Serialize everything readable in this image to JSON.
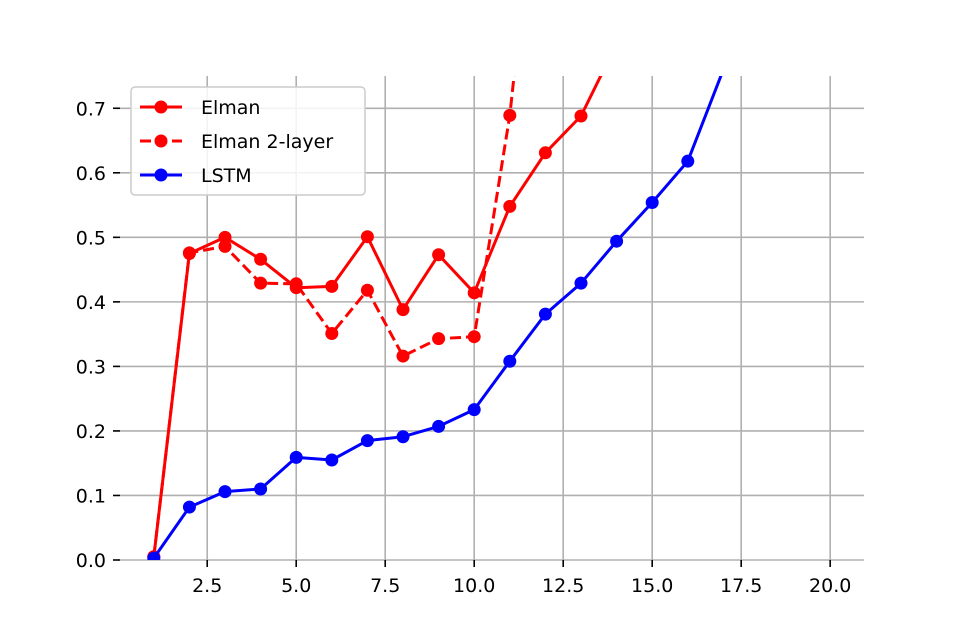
{
  "chart_data": {
    "type": "line",
    "title": "",
    "xlabel": "",
    "ylabel": "",
    "xlim": [
      0.05,
      20.95
    ],
    "ylim": [
      0,
      0.75
    ],
    "grid": true,
    "legend_position": "upper-left",
    "x_ticks": [
      2.5,
      5.0,
      7.5,
      10.0,
      12.5,
      15.0,
      17.5,
      20.0
    ],
    "x_tick_labels": [
      "2.5",
      "5.0",
      "7.5",
      "10.0",
      "12.5",
      "15.0",
      "17.5",
      "20.0"
    ],
    "y_ticks": [
      0.0,
      0.1,
      0.2,
      0.3,
      0.4,
      0.5,
      0.6,
      0.7
    ],
    "y_tick_labels": [
      "0.0",
      "0.1",
      "0.2",
      "0.3",
      "0.4",
      "0.5",
      "0.6",
      "0.7"
    ],
    "series": [
      {
        "name": "Elman",
        "color": "#ff0000",
        "dash": "solid",
        "marker": "circle",
        "x": [
          1,
          2,
          3,
          4,
          5,
          6,
          7,
          8,
          9,
          10,
          11,
          12,
          13,
          14
        ],
        "y": [
          0.005,
          0.475,
          0.5,
          0.466,
          0.422,
          0.424,
          0.501,
          0.388,
          0.473,
          0.414,
          0.548,
          0.631,
          0.688,
          0.8
        ]
      },
      {
        "name": "Elman 2-layer",
        "color": "#ff0000",
        "dash": "dashed",
        "marker": "circle",
        "x": [
          1,
          2,
          3,
          4,
          5,
          6,
          7,
          8,
          9,
          10,
          11,
          12
        ],
        "y": [
          0.005,
          0.476,
          0.486,
          0.429,
          0.428,
          0.351,
          0.418,
          0.316,
          0.343,
          0.346,
          0.689,
          1.2
        ]
      },
      {
        "name": "LSTM",
        "color": "#0000ff",
        "dash": "solid",
        "marker": "circle",
        "x": [
          1,
          2,
          3,
          4,
          5,
          6,
          7,
          8,
          9,
          10,
          11,
          12,
          13,
          14,
          15,
          16,
          17
        ],
        "y": [
          0.003,
          0.082,
          0.106,
          0.11,
          0.159,
          0.155,
          0.185,
          0.191,
          0.207,
          0.233,
          0.308,
          0.381,
          0.429,
          0.494,
          0.554,
          0.618,
          0.76
        ]
      }
    ]
  }
}
